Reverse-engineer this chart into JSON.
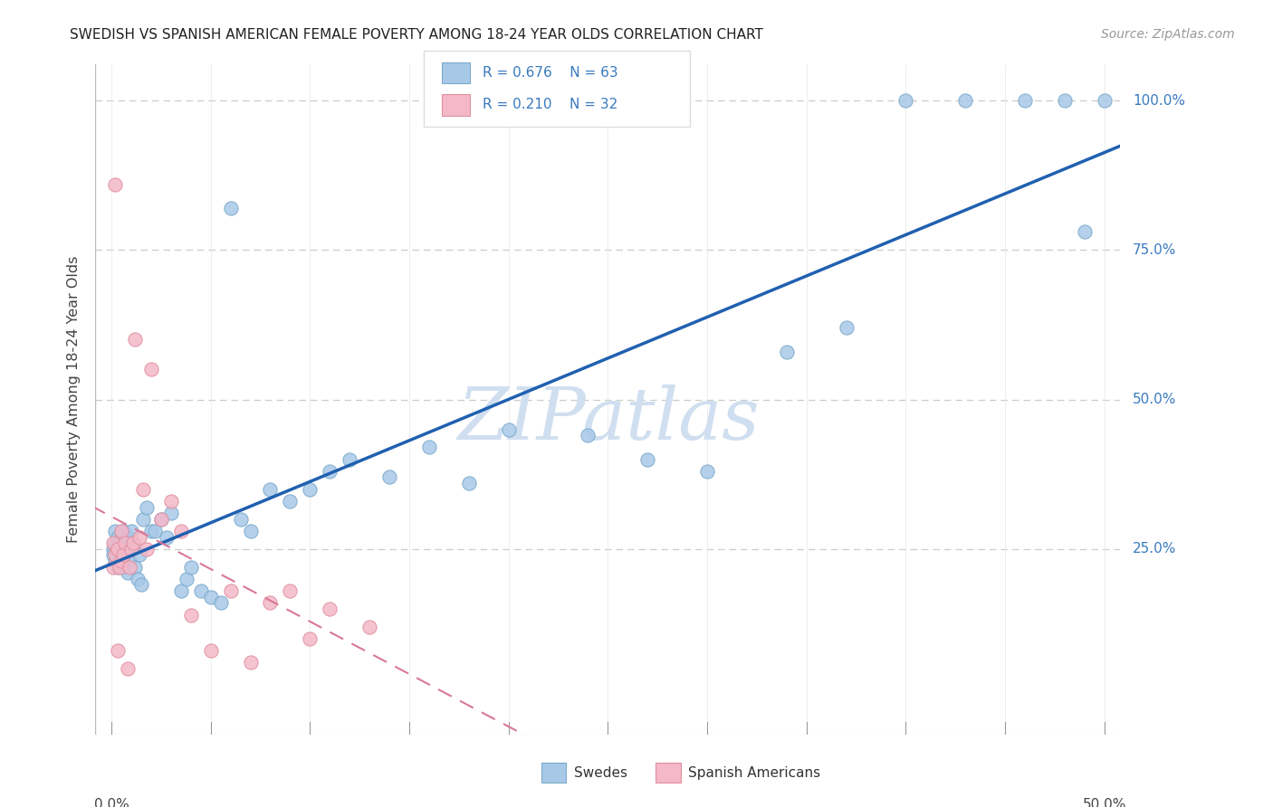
{
  "title": "SWEDISH VS SPANISH AMERICAN FEMALE POVERTY AMONG 18-24 YEAR OLDS CORRELATION CHART",
  "source": "Source: ZipAtlas.com",
  "ylabel": "Female Poverty Among 18-24 Year Olds",
  "swedes_R": "0.676",
  "swedes_N": "63",
  "spanish_R": "0.210",
  "spanish_N": "32",
  "swedes_fill": "#a8c8e8",
  "swedes_edge": "#7aaaca",
  "spanish_fill": "#f4b8c8",
  "spanish_edge": "#e090a0",
  "reg_blue": "#2060b0",
  "reg_pink": "#d87898",
  "watermark_color": "#d0dff0",
  "legend_text_color": "#3a7abf",
  "grid_color": "#cccccc",
  "xlim": [
    0.0,
    0.5
  ],
  "ylim": [
    0.0,
    1.0
  ],
  "swedes_x": [
    0.001,
    0.001,
    0.002,
    0.002,
    0.002,
    0.003,
    0.003,
    0.003,
    0.004,
    0.004,
    0.005,
    0.005,
    0.005,
    0.006,
    0.006,
    0.007,
    0.007,
    0.008,
    0.008,
    0.009,
    0.01,
    0.01,
    0.011,
    0.012,
    0.013,
    0.014,
    0.015,
    0.016,
    0.018,
    0.02,
    0.022,
    0.025,
    0.028,
    0.03,
    0.035,
    0.038,
    0.04,
    0.045,
    0.05,
    0.055,
    0.06,
    0.065,
    0.07,
    0.08,
    0.09,
    0.1,
    0.11,
    0.12,
    0.14,
    0.16,
    0.18,
    0.2,
    0.24,
    0.27,
    0.3,
    0.34,
    0.37,
    0.4,
    0.43,
    0.46,
    0.48,
    0.49,
    0.5
  ],
  "swedes_y": [
    0.25,
    0.24,
    0.26,
    0.23,
    0.28,
    0.22,
    0.27,
    0.25,
    0.24,
    0.26,
    0.23,
    0.27,
    0.25,
    0.22,
    0.28,
    0.24,
    0.26,
    0.21,
    0.27,
    0.23,
    0.28,
    0.25,
    0.26,
    0.22,
    0.2,
    0.24,
    0.19,
    0.3,
    0.32,
    0.28,
    0.28,
    0.3,
    0.27,
    0.31,
    0.18,
    0.2,
    0.22,
    0.18,
    0.17,
    0.16,
    0.82,
    0.3,
    0.28,
    0.35,
    0.33,
    0.35,
    0.38,
    0.4,
    0.37,
    0.42,
    0.36,
    0.45,
    0.44,
    0.4,
    0.38,
    0.58,
    0.62,
    1.0,
    1.0,
    1.0,
    1.0,
    0.78,
    1.0
  ],
  "spanish_x": [
    0.001,
    0.001,
    0.002,
    0.002,
    0.003,
    0.003,
    0.004,
    0.005,
    0.005,
    0.006,
    0.007,
    0.008,
    0.009,
    0.01,
    0.011,
    0.012,
    0.014,
    0.016,
    0.018,
    0.02,
    0.025,
    0.03,
    0.035,
    0.04,
    0.05,
    0.06,
    0.07,
    0.08,
    0.09,
    0.1,
    0.11,
    0.13
  ],
  "spanish_y": [
    0.26,
    0.22,
    0.86,
    0.24,
    0.25,
    0.08,
    0.22,
    0.28,
    0.23,
    0.24,
    0.26,
    0.05,
    0.22,
    0.25,
    0.26,
    0.6,
    0.27,
    0.35,
    0.25,
    0.55,
    0.3,
    0.33,
    0.28,
    0.14,
    0.08,
    0.18,
    0.06,
    0.16,
    0.18,
    0.1,
    0.15,
    0.12
  ]
}
